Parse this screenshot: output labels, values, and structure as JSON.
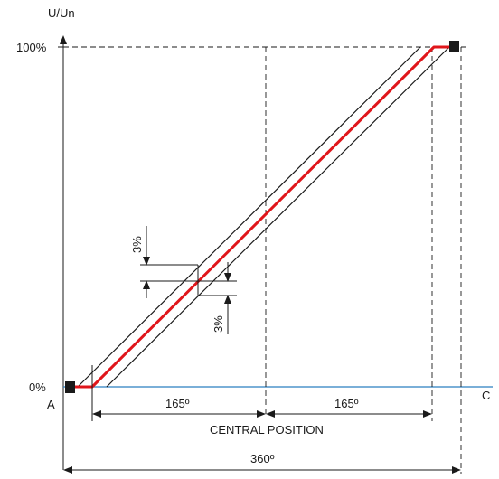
{
  "y_axis_label": "U/Un",
  "y_tick_100": "100%",
  "y_tick_0": "0%",
  "point_a": "A",
  "point_c": "C",
  "tolerance_upper": "3%",
  "tolerance_lower": "3%",
  "left_angle": "165º",
  "right_angle": "165º",
  "central_position": "CENTRAL POSITION",
  "total_angle": "360º",
  "colors": {
    "ideal_line": "#e0161b",
    "baseline": "#2a7fc1",
    "ink": "#1a1a1a"
  }
}
